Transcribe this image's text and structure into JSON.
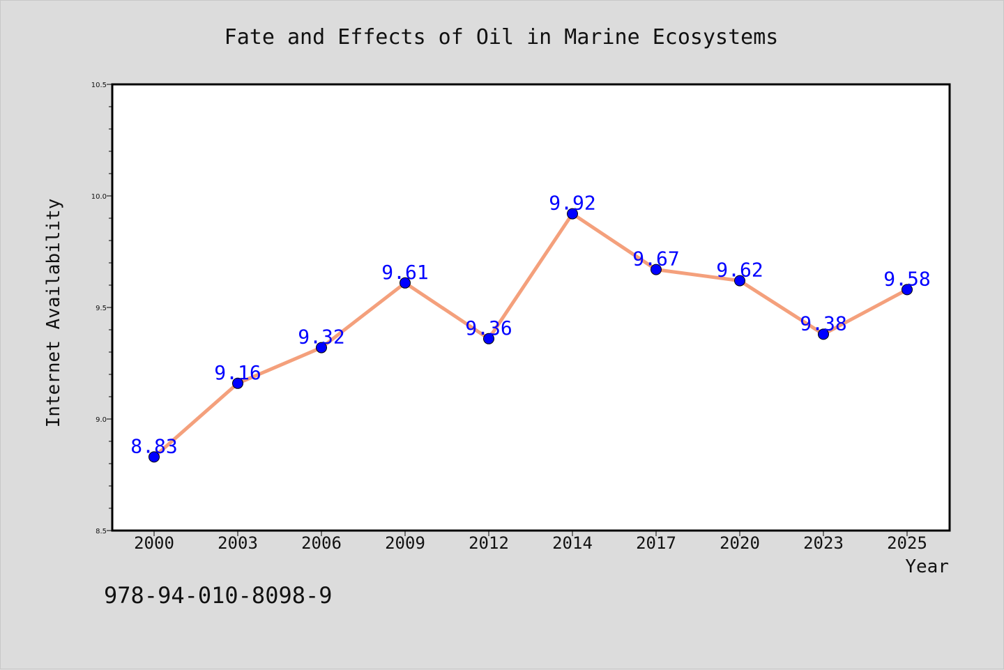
{
  "chart_data": {
    "type": "line",
    "title": "Fate and Effects of Oil in Marine Ecosystems",
    "xlabel": "Year",
    "ylabel": "Internet Availability",
    "categories": [
      "2000",
      "2003",
      "2006",
      "2009",
      "2012",
      "2014",
      "2017",
      "2020",
      "2023",
      "2025"
    ],
    "series": [
      {
        "values": [
          8.83,
          9.16,
          9.32,
          9.61,
          9.36,
          9.92,
          9.67,
          9.62,
          9.38,
          9.58
        ],
        "line_color": "#f4a07c",
        "marker_color": "#0000ff"
      }
    ],
    "data_labels": [
      "8.83",
      "9.16",
      "9.32",
      "9.61",
      "9.36",
      "9.92",
      "9.67",
      "9.62",
      "9.38",
      "9.58"
    ],
    "ylim": [
      8.5,
      10.5
    ],
    "yticks": [
      8.5,
      9.0,
      9.5,
      10.0,
      10.5
    ],
    "ytick_labels": [
      "8.5",
      "9.0",
      "9.5",
      "10.0",
      "10.5"
    ],
    "grid": false,
    "legend": "none"
  },
  "footer_text": "978-94-010-8098-9"
}
